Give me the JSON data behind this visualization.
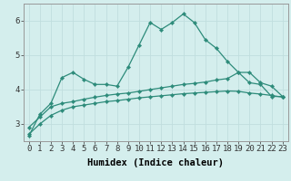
{
  "xlabel": "Humidex (Indice chaleur)",
  "background_color": "#d4eeed",
  "line_color": "#2d8b7a",
  "grid_color": "#c0dede",
  "x": [
    0,
    1,
    2,
    3,
    4,
    5,
    6,
    7,
    8,
    9,
    10,
    11,
    12,
    13,
    14,
    15,
    16,
    17,
    18,
    19,
    20,
    21,
    22,
    23
  ],
  "line1": [
    2.65,
    3.28,
    3.6,
    4.35,
    4.5,
    4.3,
    4.15,
    4.15,
    4.1,
    4.65,
    5.3,
    5.95,
    5.75,
    5.95,
    6.2,
    5.95,
    5.45,
    5.2,
    4.82,
    4.5,
    4.2,
    4.15,
    3.8,
    3.8
  ],
  "line2": [
    2.9,
    3.2,
    3.5,
    3.6,
    3.65,
    3.72,
    3.78,
    3.83,
    3.87,
    3.9,
    3.95,
    4.0,
    4.05,
    4.1,
    4.15,
    4.18,
    4.22,
    4.28,
    4.32,
    4.5,
    4.5,
    4.2,
    4.1,
    3.8
  ],
  "line3": [
    2.7,
    3.0,
    3.25,
    3.4,
    3.5,
    3.55,
    3.6,
    3.65,
    3.68,
    3.72,
    3.76,
    3.79,
    3.82,
    3.85,
    3.88,
    3.9,
    3.92,
    3.94,
    3.96,
    3.95,
    3.9,
    3.87,
    3.83,
    3.78
  ],
  "ylim": [
    2.5,
    6.5
  ],
  "yticks": [
    3,
    4,
    5,
    6
  ],
  "xticks": [
    0,
    1,
    2,
    3,
    4,
    5,
    6,
    7,
    8,
    9,
    10,
    11,
    12,
    13,
    14,
    15,
    16,
    17,
    18,
    19,
    20,
    21,
    22,
    23
  ],
  "marker": "D",
  "markersize": 2.2,
  "linewidth": 0.9,
  "xlabel_fontsize": 7.5,
  "tick_fontsize": 6.5
}
